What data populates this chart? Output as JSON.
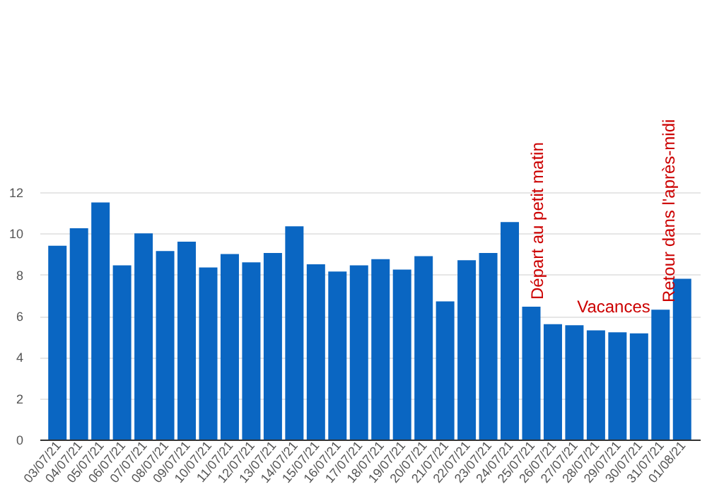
{
  "chart_data": {
    "type": "bar",
    "categories": [
      "03/07/21",
      "04/07/21",
      "05/07/21",
      "06/07/21",
      "07/07/21",
      "08/07/21",
      "09/07/21",
      "10/07/21",
      "11/07/21",
      "12/07/21",
      "13/07/21",
      "14/07/21",
      "15/07/21",
      "16/07/21",
      "17/07/21",
      "18/07/21",
      "19/07/21",
      "20/07/21",
      "21/07/21",
      "22/07/21",
      "23/07/21",
      "24/07/21",
      "25/07/21",
      "26/07/21",
      "27/07/21",
      "28/07/21",
      "29/07/21",
      "30/07/21",
      "31/07/21",
      "01/08/21"
    ],
    "values": [
      9.4,
      10.25,
      11.5,
      8.45,
      10.0,
      9.15,
      9.6,
      8.35,
      9.0,
      8.6,
      9.05,
      10.35,
      8.5,
      8.15,
      8.45,
      8.75,
      8.25,
      8.9,
      6.7,
      8.7,
      9.05,
      10.55,
      6.45,
      5.6,
      5.55,
      5.3,
      5.2,
      5.15,
      6.3,
      7.8
    ],
    "color": "#0a66c2",
    "ylim": [
      0,
      12
    ],
    "yticks": [
      0,
      2,
      4,
      6,
      8,
      10,
      12
    ],
    "grid": "y",
    "annotations": [
      "Départ au petit matin",
      "Vacances",
      "Retour dans l'après-midi"
    ]
  }
}
